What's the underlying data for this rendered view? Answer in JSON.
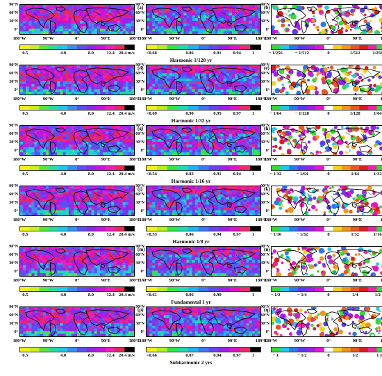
{
  "axis": {
    "lat_labels": [
      "90°N",
      "60°N",
      "30°N",
      "0°"
    ],
    "lon_labels": [
      "180°W",
      "90°W",
      "0°",
      "90°E",
      "180°E"
    ]
  },
  "rows": [
    {
      "title": "Harmonic 1/128 yr",
      "panels": [
        {
          "label": "(a)",
          "kind": "amp"
        },
        {
          "label": "(b)",
          "kind": "corr"
        },
        {
          "label": "(c)",
          "kind": "phase"
        }
      ],
      "amp_ticks": [
        "0.5",
        "4.0",
        "8.0",
        "12.4",
        "20.4 m/s"
      ],
      "corr_ticks": [
        "<0.68",
        "0.86",
        "0.91",
        "0.94",
        "1"
      ],
      "phase_ticks": [
        "− 1/256",
        "− 1/512",
        "0",
        "1/512",
        "1/256 yr"
      ]
    },
    {
      "title": "Harmonic 1/32 yr",
      "panels": [
        {
          "label": "(d)",
          "kind": "amp"
        },
        {
          "label": "(e)",
          "kind": "corr"
        },
        {
          "label": "(f)",
          "kind": "phase"
        }
      ],
      "amp_ticks": [
        "0.5",
        "4.0",
        "8.0",
        "12.4",
        "20.4 m/s"
      ],
      "corr_ticks": [
        "<0.69",
        "0.90",
        "0.95",
        "0.97",
        "1"
      ],
      "phase_ticks": [
        "− 1/64",
        "− 1/128",
        "0",
        "1/128",
        "1/64 yr"
      ]
    },
    {
      "title": "Harmonic 1/16 yr",
      "panels": [
        {
          "label": "(g)",
          "kind": "amp"
        },
        {
          "label": "(h)",
          "kind": "corr"
        },
        {
          "label": "(i)",
          "kind": "phase"
        }
      ],
      "amp_ticks": [
        "0.5",
        "4.0",
        "8.0",
        "12.4",
        "20.4 m/s"
      ],
      "corr_ticks": [
        "<0.54",
        "0.83",
        "0.91",
        "0.94",
        "1"
      ],
      "phase_ticks": [
        "− 1/32",
        "− 1/64",
        "0",
        "1/64",
        "1/32 yr"
      ]
    },
    {
      "title": "Harmonic 1/8 yr",
      "panels": [
        {
          "label": "(j)",
          "kind": "amp"
        },
        {
          "label": "(k)",
          "kind": "corr"
        },
        {
          "label": "(l)",
          "kind": "phase"
        }
      ],
      "amp_ticks": [
        "0.5",
        "4.0",
        "8.0",
        "12.4",
        "20.4 m/s"
      ],
      "corr_ticks": [
        "<0.53",
        "0.86",
        "0.94",
        "0.97",
        "1"
      ],
      "phase_ticks": [
        "− 1/16",
        "− 1/32",
        "0",
        "1/32",
        "1/16 yr"
      ]
    },
    {
      "title": "Fundamental 1 yr",
      "panels": [
        {
          "label": "(m)",
          "kind": "amp"
        },
        {
          "label": "(n)",
          "kind": "corr"
        },
        {
          "label": "(o)",
          "kind": "phase"
        }
      ],
      "amp_ticks": [
        "0.5",
        "4.0",
        "8.0",
        "12.4",
        "20.4 m/s"
      ],
      "corr_ticks": [
        "<0.61",
        "0.96",
        "0.99",
        "",
        "1"
      ],
      "phase_ticks": [
        "− 1/2",
        "− 1/4",
        "0",
        "1/4",
        "1/2 yr"
      ]
    },
    {
      "title": "Subharmonic 2 yrs",
      "panels": [
        {
          "label": "(p)",
          "kind": "amp"
        },
        {
          "label": "(q)",
          "kind": "corr"
        },
        {
          "label": "(r)",
          "kind": "phase"
        }
      ],
      "amp_ticks": [
        "0.5",
        "4.0",
        "8.0",
        "12.4",
        "20.4 m/s"
      ],
      "corr_ticks": [
        "<0.66",
        "0.87",
        "0.94",
        "0.97",
        "1"
      ],
      "phase_ticks": [
        "− 1",
        "− 1/2",
        "0",
        "1/2",
        "1 yr"
      ]
    }
  ],
  "colors": {
    "amp_scale": [
      "#f2f21a",
      "#c8f01e",
      "#5ae63c",
      "#28dca0",
      "#1ec8e6",
      "#3c8cf0",
      "#5a50f0",
      "#8c28e6",
      "#c814dc",
      "#f01eb4",
      "#e6285a",
      "#000000"
    ],
    "corr_scale": [
      "#f2f21a",
      "#b4f01e",
      "#32e646",
      "#1edcaa",
      "#1eb4f0",
      "#3c78f0",
      "#6446f0",
      "#a01ee6",
      "#dc14c8",
      "#f0286e",
      "#000000"
    ],
    "phase_scale": [
      "#32dc32",
      "#1ec8e6",
      "#2878f0",
      "#5a3cf0",
      "#a01ee6",
      "#e614c8",
      "#ffffff",
      "#f0d21e",
      "#f0961e",
      "#e65a1e",
      "#dc1e1e",
      "#e628a0",
      "#32dc32"
    ]
  }
}
